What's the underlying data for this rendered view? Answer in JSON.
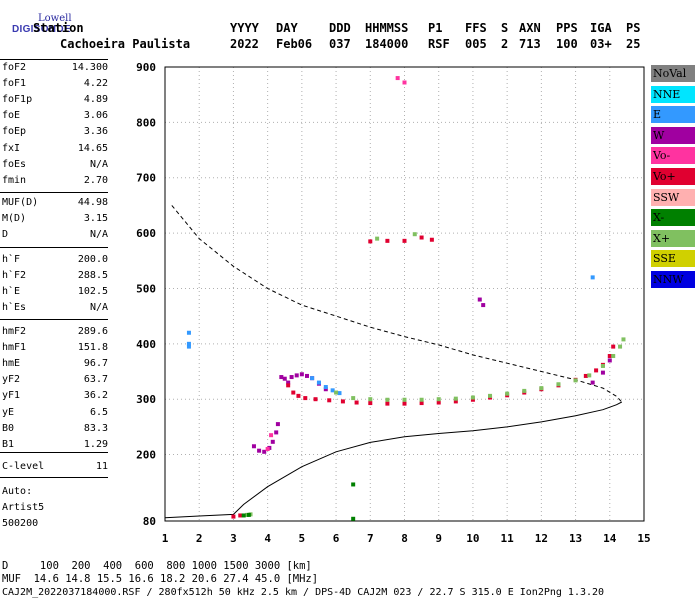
{
  "logo": {
    "line1": "Lowell",
    "line2": "DIGISONDE"
  },
  "header": {
    "labels": [
      "Station",
      "YYYY",
      "DAY",
      "DDD",
      "HHMMSS",
      "P1",
      "FFS",
      "S",
      "AXN",
      "PPS",
      "IGA",
      "PS"
    ],
    "values": [
      "Cachoeira Paulista",
      "2022",
      "Feb06",
      "037",
      "184000",
      "RSF",
      "005",
      "2",
      "713",
      "100",
      "03+",
      "25"
    ]
  },
  "params": {
    "group1": [
      {
        "name": "foF2",
        "value": "14.300"
      },
      {
        "name": "foF1",
        "value": "4.22"
      },
      {
        "name": "foF1p",
        "value": "4.89"
      },
      {
        "name": "foE",
        "value": "3.06"
      },
      {
        "name": "foEp",
        "value": "3.36"
      },
      {
        "name": "fxI",
        "value": "14.65"
      },
      {
        "name": "foEs",
        "value": "N/A"
      },
      {
        "name": "fmin",
        "value": "2.70"
      }
    ],
    "group2": [
      {
        "name": "MUF(D)",
        "value": "44.98"
      },
      {
        "name": "M(D)",
        "value": "3.15"
      },
      {
        "name": "D",
        "value": "N/A"
      }
    ],
    "group3": [
      {
        "name": "h`F",
        "value": "200.0"
      },
      {
        "name": "h`F2",
        "value": "288.5"
      },
      {
        "name": "h`E",
        "value": "102.5"
      },
      {
        "name": "h`Es",
        "value": "N/A"
      }
    ],
    "group4": [
      {
        "name": "hmF2",
        "value": "289.6"
      },
      {
        "name": "hmF1",
        "value": "151.8"
      },
      {
        "name": "hmE",
        "value": "96.7"
      },
      {
        "name": "yF2",
        "value": "63.7"
      },
      {
        "name": "yF1",
        "value": "36.2"
      },
      {
        "name": "yE",
        "value": "6.5"
      },
      {
        "name": "B0",
        "value": "83.3"
      },
      {
        "name": "B1",
        "value": "1.29"
      }
    ],
    "group5": [
      {
        "name": "C-level",
        "value": "11"
      }
    ]
  },
  "auto": {
    "line1": "Auto:",
    "line2": "Artist5",
    "line3": "500200"
  },
  "legend": [
    {
      "label": "NoVal",
      "color": "#808080"
    },
    {
      "label": "NNE",
      "color": "#00e5ff"
    },
    {
      "label": "E",
      "color": "#3399ff"
    },
    {
      "label": "W",
      "color": "#a000a0"
    },
    {
      "label": "Vo-",
      "color": "#ff33a0"
    },
    {
      "label": "Vo+",
      "color": "#e00030"
    },
    {
      "label": "SSW",
      "color": "#ffb0b0"
    },
    {
      "label": "X-",
      "color": "#008000"
    },
    {
      "label": "X+",
      "color": "#80c060"
    },
    {
      "label": "SSE",
      "color": "#d0d000"
    },
    {
      "label": "NNW",
      "color": "#0000e0"
    }
  ],
  "footer": {
    "line1": "D     100  200  400  600  800 1000 1500 3000 [km]",
    "line2": "MUF  14.6 14.8 15.5 16.6 18.2 20.6 27.4 45.0 [MHz]",
    "line3": "CAJ2M_2022037184000.RSF / 280fx512h 50 kHz 2.5 km / DPS-4D CAJ2M 023 / 22.7 S 315.0 E Ion2Png 1.3.20"
  },
  "chart_data": {
    "type": "scatter",
    "xlim": [
      1,
      15
    ],
    "ylim": [
      80,
      900
    ],
    "xticks": [
      1,
      2,
      3,
      4,
      5,
      6,
      7,
      8,
      9,
      10,
      11,
      12,
      13,
      14,
      15
    ],
    "yticks": [
      80,
      200,
      300,
      400,
      500,
      600,
      700,
      800,
      900
    ],
    "series": [
      {
        "name": "W",
        "color": "#a000a0",
        "points": [
          [
            3.6,
            215
          ],
          [
            3.75,
            207
          ],
          [
            3.9,
            205
          ],
          [
            4.05,
            212
          ],
          [
            4.15,
            223
          ],
          [
            4.25,
            240
          ],
          [
            4.3,
            255
          ],
          [
            4.4,
            340
          ],
          [
            4.5,
            337
          ],
          [
            4.6,
            330
          ],
          [
            4.7,
            340
          ],
          [
            4.85,
            343
          ],
          [
            5.0,
            345
          ],
          [
            5.15,
            342
          ],
          [
            5.3,
            338
          ],
          [
            5.5,
            328
          ],
          [
            5.7,
            318
          ],
          [
            10.2,
            480
          ],
          [
            10.3,
            470
          ],
          [
            13.5,
            330
          ],
          [
            13.8,
            348
          ],
          [
            14.0,
            370
          ]
        ]
      },
      {
        "name": "Vo+",
        "color": "#e00030",
        "points": [
          [
            4.6,
            325
          ],
          [
            4.75,
            312
          ],
          [
            4.9,
            306
          ],
          [
            5.1,
            302
          ],
          [
            5.4,
            300
          ],
          [
            5.8,
            298
          ],
          [
            6.2,
            296
          ],
          [
            6.6,
            294
          ],
          [
            7.0,
            293
          ],
          [
            7.5,
            292
          ],
          [
            8.0,
            292
          ],
          [
            8.5,
            293
          ],
          [
            9.0,
            294
          ],
          [
            9.5,
            296
          ],
          [
            10.0,
            299
          ],
          [
            10.5,
            303
          ],
          [
            11.0,
            307
          ],
          [
            11.5,
            312
          ],
          [
            12.0,
            318
          ],
          [
            12.5,
            325
          ],
          [
            13.0,
            335
          ],
          [
            13.3,
            342
          ],
          [
            13.6,
            352
          ],
          [
            13.8,
            362
          ],
          [
            14.0,
            378
          ],
          [
            14.1,
            395
          ],
          [
            7.0,
            585
          ],
          [
            7.5,
            586
          ],
          [
            8.0,
            586
          ],
          [
            8.5,
            592
          ],
          [
            8.8,
            588
          ],
          [
            3.0,
            88
          ],
          [
            3.2,
            90
          ]
        ]
      },
      {
        "name": "E",
        "color": "#3399ff",
        "points": [
          [
            5.3,
            338
          ],
          [
            5.5,
            330
          ],
          [
            5.7,
            322
          ],
          [
            5.9,
            316
          ],
          [
            6.1,
            311
          ],
          [
            1.7,
            395
          ],
          [
            1.7,
            400
          ],
          [
            1.7,
            420
          ],
          [
            13.5,
            520
          ]
        ]
      },
      {
        "name": "X+",
        "color": "#80c060",
        "points": [
          [
            6.0,
            312
          ],
          [
            6.5,
            302
          ],
          [
            7.0,
            300
          ],
          [
            7.5,
            299
          ],
          [
            8.0,
            299
          ],
          [
            8.5,
            299
          ],
          [
            9.0,
            300
          ],
          [
            9.5,
            301
          ],
          [
            10.0,
            303
          ],
          [
            10.5,
            306
          ],
          [
            11.0,
            310
          ],
          [
            11.5,
            315
          ],
          [
            12.0,
            320
          ],
          [
            12.5,
            327
          ],
          [
            13.0,
            334
          ],
          [
            13.4,
            343
          ],
          [
            13.8,
            360
          ],
          [
            14.1,
            378
          ],
          [
            14.3,
            395
          ],
          [
            14.4,
            408
          ],
          [
            7.2,
            590
          ],
          [
            8.3,
            598
          ],
          [
            3.4,
            91
          ],
          [
            3.5,
            92
          ]
        ]
      },
      {
        "name": "X-",
        "color": "#008000",
        "points": [
          [
            3.3,
            90
          ],
          [
            3.45,
            91
          ],
          [
            6.5,
            146
          ],
          [
            6.5,
            84
          ]
        ]
      },
      {
        "name": "Vo-",
        "color": "#ff33a0",
        "points": [
          [
            4.0,
            210
          ],
          [
            4.1,
            235
          ],
          [
            7.8,
            880
          ],
          [
            8.0,
            872
          ]
        ]
      }
    ],
    "model_lines": [
      {
        "name": "dashed",
        "points": [
          [
            1.2,
            650
          ],
          [
            2.0,
            590
          ],
          [
            3.0,
            540
          ],
          [
            4.0,
            500
          ],
          [
            5.0,
            470
          ],
          [
            6.0,
            450
          ],
          [
            7.0,
            430
          ],
          [
            8.0,
            413
          ],
          [
            9.0,
            398
          ],
          [
            10.0,
            380
          ],
          [
            11.0,
            365
          ],
          [
            12.0,
            350
          ],
          [
            13.0,
            335
          ],
          [
            13.8,
            320
          ],
          [
            14.2,
            305
          ],
          [
            14.35,
            295
          ]
        ]
      },
      {
        "name": "solid",
        "points": [
          [
            1.0,
            86
          ],
          [
            2.0,
            89
          ],
          [
            3.0,
            92
          ],
          [
            3.3,
            110
          ],
          [
            4.0,
            142
          ],
          [
            5.0,
            178
          ],
          [
            6.0,
            205
          ],
          [
            7.0,
            222
          ],
          [
            8.0,
            232
          ],
          [
            9.0,
            238
          ],
          [
            10.0,
            243
          ],
          [
            11.0,
            250
          ],
          [
            12.0,
            259
          ],
          [
            13.0,
            270
          ],
          [
            13.8,
            281
          ],
          [
            14.2,
            290
          ],
          [
            14.35,
            295
          ]
        ]
      }
    ]
  }
}
